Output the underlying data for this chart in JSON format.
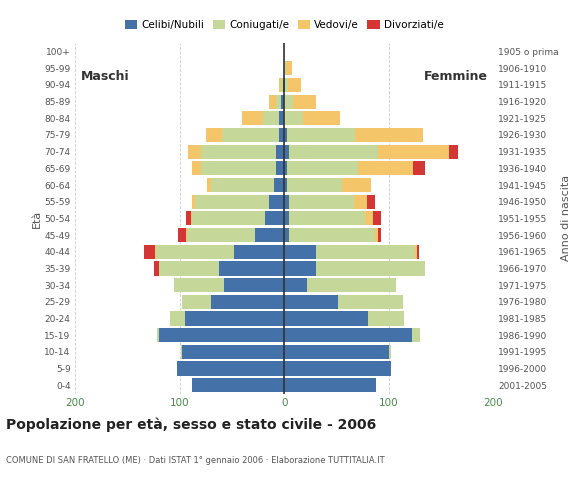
{
  "age_groups_bottom_to_top": [
    "0-4",
    "5-9",
    "10-14",
    "15-19",
    "20-24",
    "25-29",
    "30-34",
    "35-39",
    "40-44",
    "45-49",
    "50-54",
    "55-59",
    "60-64",
    "65-69",
    "70-74",
    "75-79",
    "80-84",
    "85-89",
    "90-94",
    "95-99",
    "100+"
  ],
  "birth_years_bottom_to_top": [
    "2001-2005",
    "1996-2000",
    "1991-1995",
    "1986-1990",
    "1981-1985",
    "1976-1980",
    "1971-1975",
    "1966-1970",
    "1961-1965",
    "1956-1960",
    "1951-1955",
    "1946-1950",
    "1941-1945",
    "1936-1940",
    "1931-1935",
    "1926-1930",
    "1921-1925",
    "1916-1920",
    "1911-1915",
    "1906-1910",
    "1905 o prima"
  ],
  "males_celibe": [
    88,
    103,
    98,
    120,
    95,
    70,
    58,
    62,
    48,
    28,
    18,
    15,
    10,
    8,
    8,
    5,
    5,
    3,
    1,
    0,
    0
  ],
  "males_coniugato": [
    0,
    0,
    1,
    2,
    14,
    28,
    48,
    58,
    75,
    65,
    70,
    70,
    60,
    72,
    72,
    55,
    15,
    5,
    2,
    0,
    0
  ],
  "males_vedovo": [
    0,
    0,
    0,
    0,
    0,
    0,
    0,
    0,
    1,
    1,
    1,
    3,
    4,
    8,
    12,
    15,
    20,
    7,
    2,
    0,
    0
  ],
  "males_divorziato": [
    0,
    0,
    0,
    0,
    0,
    0,
    0,
    5,
    10,
    8,
    5,
    0,
    0,
    0,
    0,
    0,
    0,
    0,
    0,
    0,
    0
  ],
  "females_nubile": [
    88,
    102,
    100,
    122,
    80,
    52,
    22,
    30,
    30,
    5,
    5,
    5,
    3,
    3,
    5,
    3,
    0,
    0,
    1,
    0,
    0
  ],
  "females_coniugata": [
    0,
    0,
    2,
    8,
    35,
    62,
    85,
    105,
    95,
    82,
    72,
    62,
    52,
    68,
    85,
    65,
    18,
    8,
    3,
    2,
    0
  ],
  "females_vedova": [
    0,
    0,
    0,
    0,
    0,
    0,
    0,
    0,
    2,
    3,
    8,
    12,
    28,
    52,
    68,
    65,
    35,
    22,
    12,
    5,
    0
  ],
  "females_divorziata": [
    0,
    0,
    0,
    0,
    0,
    0,
    0,
    0,
    2,
    3,
    8,
    8,
    0,
    12,
    8,
    0,
    0,
    0,
    0,
    0,
    0
  ],
  "colors": {
    "celibe_nubile": "#4472A8",
    "coniugato_a": "#C5D89A",
    "vedovo_a": "#F5C669",
    "divorziato_a": "#D43535"
  },
  "xlim": 200,
  "title": "Popolazione per età, sesso e stato civile - 2006",
  "subtitle": "COMUNE DI SAN FRATELLO (ME) · Dati ISTAT 1° gennaio 2006 · Elaborazione TUTTITALIA.IT",
  "ylabel_left": "Età",
  "ylabel_right": "Anno di nascita",
  "legend_labels": [
    "Celibi/Nubili",
    "Coniugati/e",
    "Vedovi/e",
    "Divorziati/e"
  ],
  "bg_color": "#ffffff",
  "grid_color": "#cccccc",
  "maschi_label": "Maschi",
  "femmine_label": "Femmine"
}
